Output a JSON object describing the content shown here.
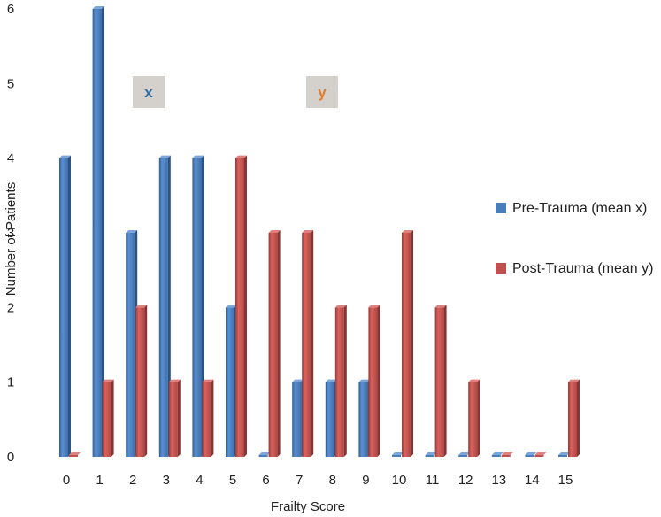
{
  "chart_data": {
    "type": "bar",
    "title": "",
    "xlabel": "Frailty Score",
    "ylabel": "Number of Patients",
    "categories": [
      "0",
      "1",
      "2",
      "3",
      "4",
      "5",
      "6",
      "7",
      "8",
      "9",
      "10",
      "11",
      "12",
      "13",
      "14",
      "15"
    ],
    "ylim": [
      0,
      6
    ],
    "yticks": [
      "0",
      "1",
      "2",
      "3",
      "4",
      "5",
      "6"
    ],
    "grid": false,
    "legend_position": "right",
    "series": [
      {
        "name": "Pre-Trauma (mean x)",
        "color": "#4a7ebb",
        "values": [
          4,
          6,
          3,
          4,
          4,
          2,
          0,
          1,
          1,
          1,
          0,
          0,
          0,
          0,
          0,
          0
        ]
      },
      {
        "name": "Post-Trauma (mean y)",
        "color": "#c0504d",
        "values": [
          0,
          1,
          2,
          1,
          1,
          4,
          3,
          3,
          2,
          2,
          3,
          2,
          1,
          0,
          0,
          1
        ]
      }
    ],
    "annotations": [
      {
        "text": "x",
        "color": "#2e6da4",
        "box_color": "#d4d0cc"
      },
      {
        "text": "y",
        "color": "#e07b2c",
        "box_color": "#d4d0cc"
      }
    ]
  }
}
